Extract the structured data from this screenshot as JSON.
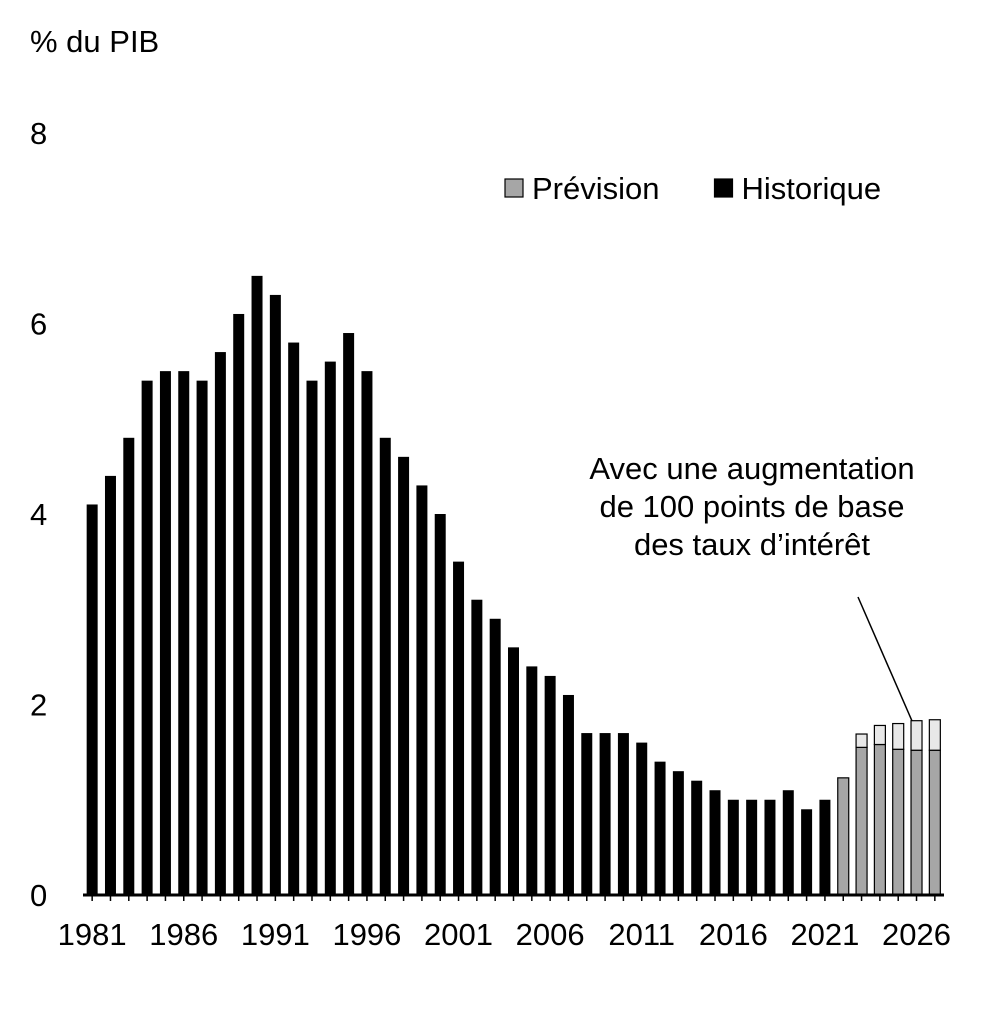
{
  "chart_data": {
    "type": "bar",
    "stacked": true,
    "y_label": "% du PIB",
    "categories": [
      1981,
      null,
      null,
      null,
      null,
      1986,
      null,
      null,
      null,
      null,
      1991,
      null,
      null,
      null,
      null,
      1996,
      null,
      null,
      null,
      null,
      2001,
      null,
      null,
      null,
      null,
      2006,
      null,
      null,
      null,
      null,
      2011,
      null,
      null,
      null,
      null,
      2016,
      null,
      null,
      null,
      null,
      2021,
      null,
      null,
      null,
      null,
      2026,
      null
    ],
    "series": [
      {
        "name": "Historique",
        "color": "#000000",
        "values": [
          4.1,
          4.4,
          4.8,
          5.4,
          5.5,
          5.5,
          5.4,
          5.7,
          6.1,
          6.5,
          6.3,
          5.8,
          5.4,
          5.6,
          5.9,
          5.5,
          4.8,
          4.6,
          4.3,
          4.0,
          3.5,
          3.1,
          2.9,
          2.6,
          2.4,
          2.3,
          2.1,
          1.7,
          1.7,
          1.7,
          1.6,
          1.4,
          1.3,
          1.2,
          1.1,
          1.0,
          1.0,
          1.0,
          1.1,
          0.9,
          1.0,
          null,
          null,
          null,
          null,
          null,
          null
        ]
      },
      {
        "name": "Prévision",
        "color": "#a6a6a6",
        "values": [
          null,
          null,
          null,
          null,
          null,
          null,
          null,
          null,
          null,
          null,
          null,
          null,
          null,
          null,
          null,
          null,
          null,
          null,
          null,
          null,
          null,
          null,
          null,
          null,
          null,
          null,
          null,
          null,
          null,
          null,
          null,
          null,
          null,
          null,
          null,
          null,
          null,
          null,
          null,
          null,
          null,
          1.23,
          1.55,
          1.58,
          1.53,
          1.52,
          1.52
        ]
      },
      {
        "color": "#e8e8e8",
        "values": [
          null,
          null,
          null,
          null,
          null,
          null,
          null,
          null,
          null,
          null,
          null,
          null,
          null,
          null,
          null,
          null,
          null,
          null,
          null,
          null,
          null,
          null,
          null,
          null,
          null,
          null,
          null,
          null,
          null,
          null,
          null,
          null,
          null,
          null,
          null,
          null,
          null,
          null,
          null,
          null,
          null,
          null,
          0.14,
          0.2,
          0.27,
          0.31,
          0.32
        ]
      }
    ],
    "annotation": [
      "Avec une augmentation",
      "de 100 points de base",
      "des taux d’intérêt"
    ],
    "ylim": [
      0,
      8
    ],
    "yticks": [
      0,
      2,
      4,
      6,
      8
    ],
    "legend": "top-right"
  }
}
